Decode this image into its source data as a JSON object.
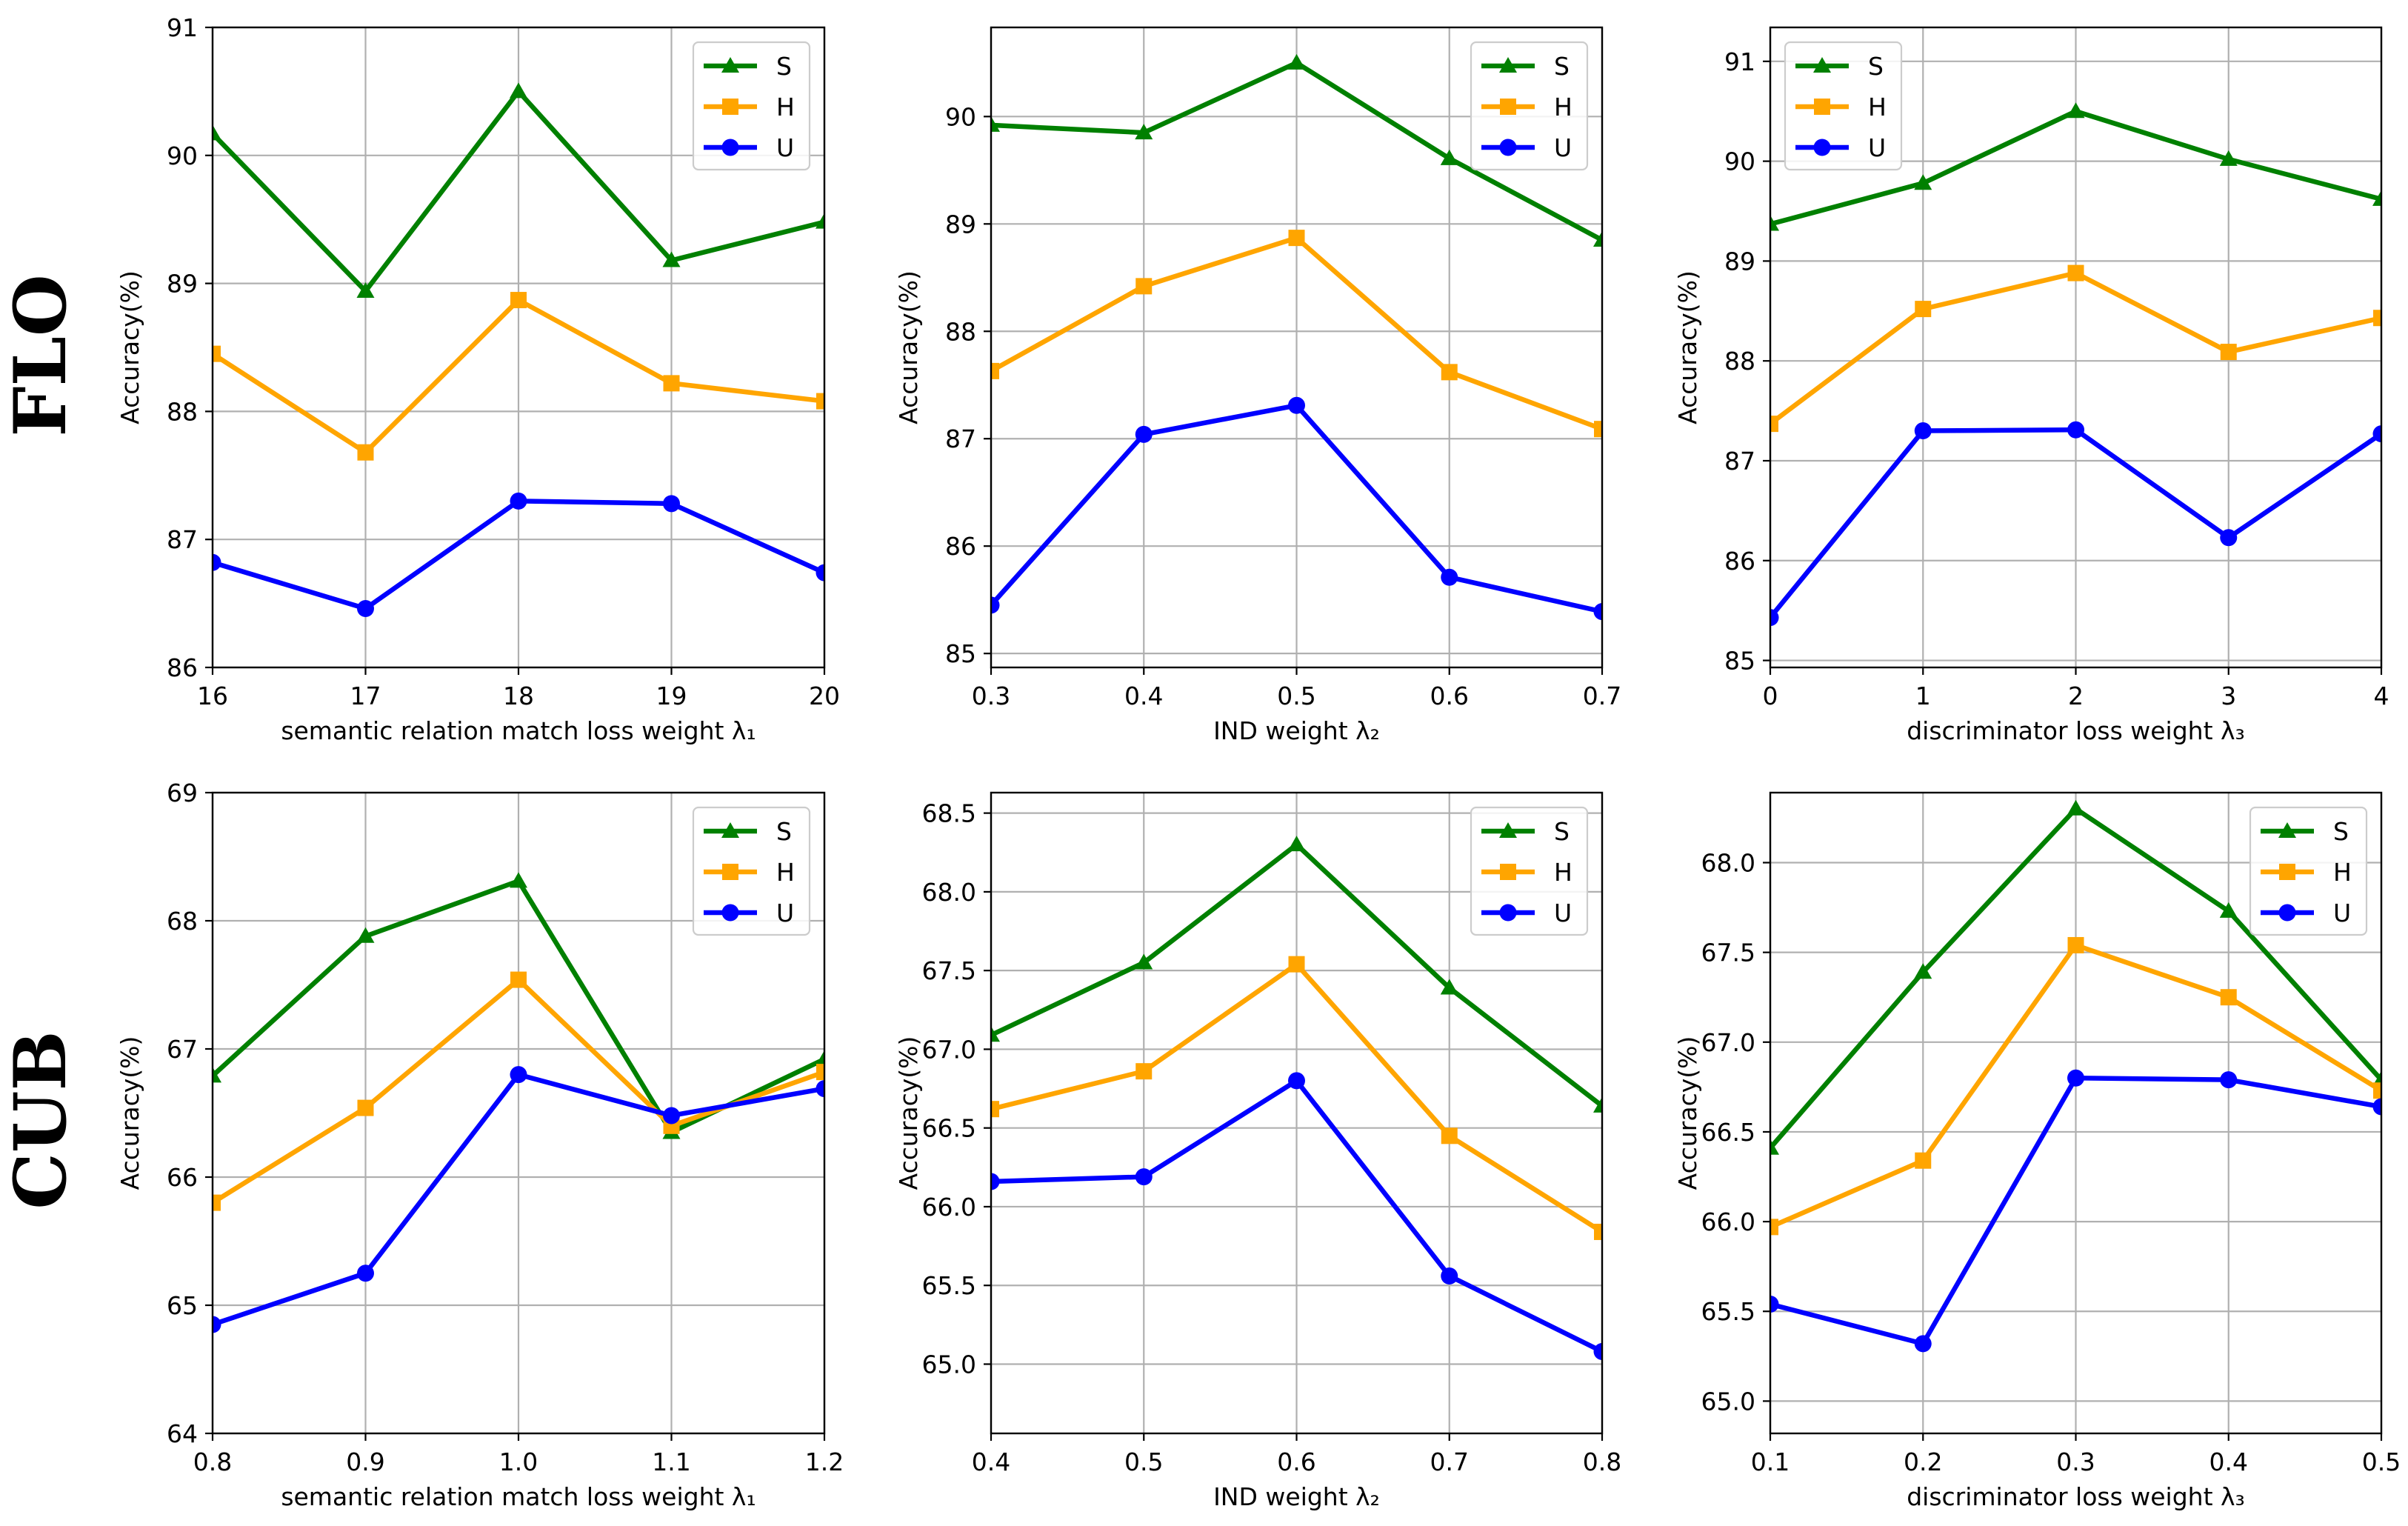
{
  "row_labels": [
    "FLO",
    "CUB"
  ],
  "colors": {
    "S": "#008000",
    "H": "#FFA500",
    "U": "#0000FF"
  },
  "chart_data": [
    {
      "type": "line",
      "row": "FLO",
      "xlabel": "semantic relation match loss weight λ₁",
      "ylabel": "Accuracy(%)",
      "x": [
        16,
        17,
        18,
        19,
        20
      ],
      "x_ticks": [
        "16",
        "17",
        "18",
        "19",
        "20"
      ],
      "xlim": [
        16,
        20
      ],
      "y_ticks": [
        "86",
        "87",
        "88",
        "89",
        "90",
        "91"
      ],
      "y_tick_values": [
        86,
        87,
        88,
        89,
        90,
        91
      ],
      "ylim": [
        86,
        91
      ],
      "grid": true,
      "legend": "upper right",
      "series": [
        {
          "name": "S",
          "marker": "triangle",
          "values": [
            90.17,
            88.94,
            90.5,
            89.18,
            89.48
          ]
        },
        {
          "name": "H",
          "marker": "square",
          "values": [
            88.45,
            87.68,
            88.87,
            88.22,
            88.08
          ]
        },
        {
          "name": "U",
          "marker": "circle",
          "values": [
            86.82,
            86.46,
            87.3,
            87.28,
            86.74
          ]
        }
      ]
    },
    {
      "type": "line",
      "row": "FLO",
      "xlabel": "IND weight λ₂",
      "ylabel": "Accuracy(%)",
      "x": [
        0.3,
        0.4,
        0.5,
        0.6,
        0.7
      ],
      "x_ticks": [
        "0.3",
        "0.4",
        "0.5",
        "0.6",
        "0.7"
      ],
      "xlim": [
        0.3,
        0.7
      ],
      "y_ticks": [
        "85",
        "86",
        "87",
        "88",
        "89",
        "90"
      ],
      "y_tick_values": [
        85,
        86,
        87,
        88,
        89,
        90
      ],
      "ylim": [
        84.87,
        90.83
      ],
      "grid": true,
      "legend": "upper right",
      "series": [
        {
          "name": "S",
          "marker": "triangle",
          "values": [
            89.92,
            89.85,
            90.5,
            89.61,
            88.85
          ]
        },
        {
          "name": "H",
          "marker": "square",
          "values": [
            87.63,
            88.42,
            88.87,
            87.62,
            87.09
          ]
        },
        {
          "name": "U",
          "marker": "circle",
          "values": [
            85.45,
            87.04,
            87.31,
            85.71,
            85.39
          ]
        }
      ]
    },
    {
      "type": "line",
      "row": "FLO",
      "xlabel": "discriminator loss weight λ₃",
      "ylabel": "Accuracy(%)",
      "x": [
        0,
        1,
        2,
        3,
        4
      ],
      "x_ticks": [
        "0",
        "1",
        "2",
        "3",
        "4"
      ],
      "xlim": [
        0,
        4
      ],
      "y_ticks": [
        "85",
        "86",
        "87",
        "88",
        "89",
        "90",
        "91"
      ],
      "y_tick_values": [
        85,
        86,
        87,
        88,
        89,
        90,
        91
      ],
      "ylim": [
        84.93,
        91.34
      ],
      "grid": true,
      "legend": "upper left",
      "series": [
        {
          "name": "S",
          "marker": "triangle",
          "values": [
            89.37,
            89.78,
            90.5,
            90.02,
            89.62
          ]
        },
        {
          "name": "H",
          "marker": "square",
          "values": [
            87.37,
            88.52,
            88.88,
            88.09,
            88.43
          ]
        },
        {
          "name": "U",
          "marker": "circle",
          "values": [
            85.43,
            87.3,
            87.31,
            86.23,
            87.27
          ]
        }
      ]
    },
    {
      "type": "line",
      "row": "CUB",
      "xlabel": "semantic relation match loss weight λ₁",
      "ylabel": "Accuracy(%)",
      "x": [
        0.8,
        0.9,
        1.0,
        1.1,
        1.2
      ],
      "x_ticks": [
        "0.8",
        "0.9",
        "1.0",
        "1.1",
        "1.2"
      ],
      "xlim": [
        0.8,
        1.2
      ],
      "y_ticks": [
        "64",
        "65",
        "66",
        "67",
        "68",
        "69"
      ],
      "y_tick_values": [
        64,
        65,
        66,
        67,
        68,
        69
      ],
      "ylim": [
        64,
        69
      ],
      "grid": true,
      "legend": "upper right",
      "series": [
        {
          "name": "S",
          "marker": "triangle",
          "values": [
            66.79,
            67.88,
            68.31,
            66.35,
            66.92
          ]
        },
        {
          "name": "H",
          "marker": "square",
          "values": [
            65.8,
            66.54,
            67.54,
            66.4,
            66.82
          ]
        },
        {
          "name": "U",
          "marker": "circle",
          "values": [
            64.85,
            65.25,
            66.8,
            66.48,
            66.69
          ]
        }
      ]
    },
    {
      "type": "line",
      "row": "CUB",
      "xlabel": "IND weight λ₂",
      "ylabel": "Accuracy(%)",
      "x": [
        0.4,
        0.5,
        0.6,
        0.7,
        0.8
      ],
      "x_ticks": [
        "0.4",
        "0.5",
        "0.6",
        "0.7",
        "0.8"
      ],
      "xlim": [
        0.4,
        0.8
      ],
      "y_ticks": [
        "65.0",
        "65.5",
        "66.0",
        "66.5",
        "67.0",
        "67.5",
        "68.0",
        "68.5"
      ],
      "y_tick_values": [
        65.0,
        65.5,
        66.0,
        66.5,
        67.0,
        67.5,
        68.0,
        68.5
      ],
      "ylim": [
        64.56,
        68.63
      ],
      "grid": true,
      "legend": "upper right",
      "series": [
        {
          "name": "S",
          "marker": "triangle",
          "values": [
            67.09,
            67.55,
            68.3,
            67.39,
            66.64
          ]
        },
        {
          "name": "H",
          "marker": "square",
          "values": [
            66.62,
            66.86,
            67.54,
            66.45,
            65.84
          ]
        },
        {
          "name": "U",
          "marker": "circle",
          "values": [
            66.16,
            66.19,
            66.8,
            65.56,
            65.08
          ]
        }
      ]
    },
    {
      "type": "line",
      "row": "CUB",
      "xlabel": "discriminator loss weight λ₃",
      "ylabel": "Accuracy(%)",
      "x": [
        0.1,
        0.2,
        0.3,
        0.4,
        0.5
      ],
      "x_ticks": [
        "0.1",
        "0.2",
        "0.3",
        "0.4",
        "0.5"
      ],
      "xlim": [
        0.1,
        0.5
      ],
      "y_ticks": [
        "65.0",
        "65.5",
        "66.0",
        "66.5",
        "67.0",
        "67.5",
        "68.0"
      ],
      "y_tick_values": [
        65.0,
        65.5,
        66.0,
        66.5,
        67.0,
        67.5,
        68.0
      ],
      "ylim": [
        64.82,
        68.39
      ],
      "grid": true,
      "legend": "upper right",
      "series": [
        {
          "name": "S",
          "marker": "triangle",
          "values": [
            66.41,
            67.39,
            68.3,
            67.73,
            66.79
          ]
        },
        {
          "name": "H",
          "marker": "square",
          "values": [
            65.97,
            66.34,
            67.54,
            67.25,
            66.73
          ]
        },
        {
          "name": "U",
          "marker": "circle",
          "values": [
            65.54,
            65.32,
            66.8,
            66.79,
            66.64
          ]
        }
      ]
    }
  ]
}
